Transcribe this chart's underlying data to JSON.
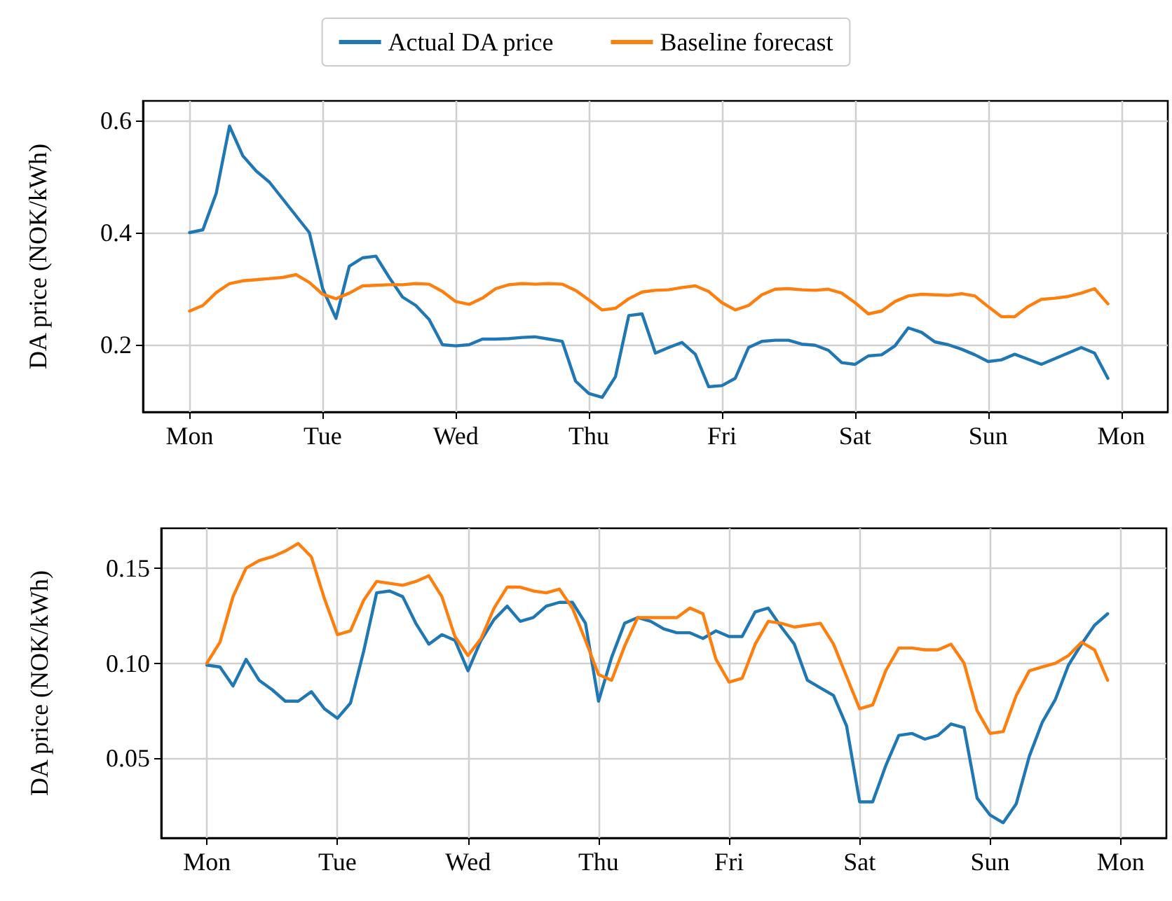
{
  "chart_data": [
    {
      "type": "line",
      "ylabel": "DA price (NOK/kWh)",
      "categories": [
        "Mon",
        null,
        null,
        null,
        null,
        null,
        null,
        null,
        null,
        null,
        "Tue",
        null,
        null,
        null,
        null,
        null,
        null,
        null,
        null,
        null,
        "Wed",
        null,
        null,
        null,
        null,
        null,
        null,
        null,
        null,
        null,
        "Thu",
        null,
        null,
        null,
        null,
        null,
        null,
        null,
        null,
        null,
        "Fri",
        null,
        null,
        null,
        null,
        null,
        null,
        null,
        null,
        null,
        "Sat",
        null,
        null,
        null,
        null,
        null,
        null,
        null,
        null,
        null,
        "Sun",
        null,
        null,
        null,
        null,
        null,
        null,
        null,
        null,
        null,
        "Mon"
      ],
      "ylim": [
        0.08,
        0.635
      ],
      "yticks": [
        0.2,
        0.4,
        0.6
      ],
      "grid": true,
      "legend": "top",
      "marker": "none",
      "line_style": "solid",
      "series": [
        {
          "name": "Actual DA price",
          "color": "#1f77b4",
          "values": [
            0.4,
            0.405,
            0.47,
            0.59,
            0.537,
            0.51,
            0.49,
            0.46,
            0.43,
            0.4,
            0.3,
            0.247,
            0.34,
            0.355,
            0.358,
            0.32,
            0.285,
            0.27,
            0.245,
            0.2,
            0.198,
            0.2,
            0.21,
            0.21,
            0.211,
            0.213,
            0.214,
            0.21,
            0.206,
            0.135,
            0.113,
            0.106,
            0.143,
            0.252,
            0.255,
            0.185,
            0.195,
            0.204,
            0.183,
            0.125,
            0.127,
            0.14,
            0.195,
            0.206,
            0.208,
            0.208,
            0.201,
            0.199,
            0.19,
            0.168,
            0.165,
            0.18,
            0.182,
            0.198,
            0.23,
            0.222,
            0.205,
            0.2,
            0.192,
            0.182,
            0.17,
            0.173,
            0.183,
            0.174,
            0.165,
            0.175,
            0.185,
            0.195,
            0.185,
            0.14,
            null
          ]
        },
        {
          "name": "Baseline forecast",
          "color": "#ff7f0e",
          "values": [
            0.26,
            0.27,
            0.293,
            0.309,
            0.314,
            0.316,
            0.318,
            0.32,
            0.325,
            0.311,
            0.29,
            0.282,
            0.292,
            0.305,
            0.306,
            0.307,
            0.307,
            0.309,
            0.308,
            0.295,
            0.277,
            0.272,
            0.283,
            0.3,
            0.307,
            0.309,
            0.308,
            0.309,
            0.308,
            0.297,
            0.28,
            0.262,
            0.265,
            0.282,
            0.294,
            0.297,
            0.298,
            0.302,
            0.305,
            0.295,
            0.275,
            0.262,
            0.27,
            0.289,
            0.299,
            0.3,
            0.298,
            0.297,
            0.299,
            0.292,
            0.275,
            0.255,
            0.26,
            0.277,
            0.287,
            0.29,
            0.289,
            0.288,
            0.291,
            0.287,
            0.268,
            0.25,
            0.25,
            0.268,
            0.281,
            0.283,
            0.286,
            0.292,
            0.3,
            0.273,
            null
          ]
        }
      ]
    },
    {
      "type": "line",
      "ylabel": "DA price (NOK/kWh)",
      "categories": [
        "Mon",
        null,
        null,
        null,
        null,
        null,
        null,
        null,
        null,
        null,
        "Tue",
        null,
        null,
        null,
        null,
        null,
        null,
        null,
        null,
        null,
        "Wed",
        null,
        null,
        null,
        null,
        null,
        null,
        null,
        null,
        null,
        "Thu",
        null,
        null,
        null,
        null,
        null,
        null,
        null,
        null,
        null,
        "Fri",
        null,
        null,
        null,
        null,
        null,
        null,
        null,
        null,
        null,
        "Sat",
        null,
        null,
        null,
        null,
        null,
        null,
        null,
        null,
        null,
        "Sun",
        null,
        null,
        null,
        null,
        null,
        null,
        null,
        null,
        null,
        "Mon"
      ],
      "ylim": [
        0.008,
        0.171
      ],
      "yticks": [
        {
          "value": 0.05,
          "label": "0.05"
        },
        {
          "value": 0.1,
          "label": "0.10"
        },
        {
          "value": 0.15,
          "label": "0.15"
        }
      ],
      "grid": true,
      "marker": "none",
      "line_style": "solid",
      "series": [
        {
          "color": "#1f77b4",
          "values": [
            0.099,
            0.098,
            0.088,
            0.102,
            0.091,
            0.086,
            0.08,
            0.08,
            0.085,
            0.076,
            0.071,
            0.079,
            0.106,
            0.137,
            0.138,
            0.135,
            0.121,
            0.11,
            0.115,
            0.112,
            0.096,
            0.112,
            0.123,
            0.13,
            0.122,
            0.124,
            0.13,
            0.132,
            0.132,
            0.121,
            0.08,
            0.103,
            0.121,
            0.124,
            0.122,
            0.118,
            0.116,
            0.116,
            0.113,
            0.117,
            0.114,
            0.114,
            0.127,
            0.129,
            0.119,
            0.11,
            0.091,
            0.087,
            0.083,
            0.067,
            0.027,
            0.027,
            0.046,
            0.062,
            0.063,
            0.06,
            0.062,
            0.068,
            0.066,
            0.029,
            0.02,
            0.016,
            0.026,
            0.051,
            0.069,
            0.081,
            0.099,
            0.11,
            0.12,
            0.126,
            null
          ]
        },
        {
          "color": "#ff7f0e",
          "values": [
            0.1,
            0.111,
            0.135,
            0.15,
            0.154,
            0.156,
            0.159,
            0.163,
            0.156,
            0.134,
            0.115,
            0.117,
            0.133,
            0.143,
            0.142,
            0.141,
            0.143,
            0.146,
            0.135,
            0.114,
            0.104,
            0.113,
            0.129,
            0.14,
            0.14,
            0.138,
            0.137,
            0.139,
            0.129,
            0.112,
            0.094,
            0.091,
            0.109,
            0.124,
            0.124,
            0.124,
            0.124,
            0.129,
            0.126,
            0.102,
            0.09,
            0.092,
            0.11,
            0.122,
            0.121,
            0.119,
            0.12,
            0.121,
            0.11,
            0.093,
            0.076,
            0.078,
            0.096,
            0.108,
            0.108,
            0.107,
            0.107,
            0.11,
            0.1,
            0.075,
            0.063,
            0.064,
            0.083,
            0.096,
            0.098,
            0.1,
            0.104,
            0.111,
            0.107,
            0.091,
            null
          ]
        }
      ]
    }
  ]
}
